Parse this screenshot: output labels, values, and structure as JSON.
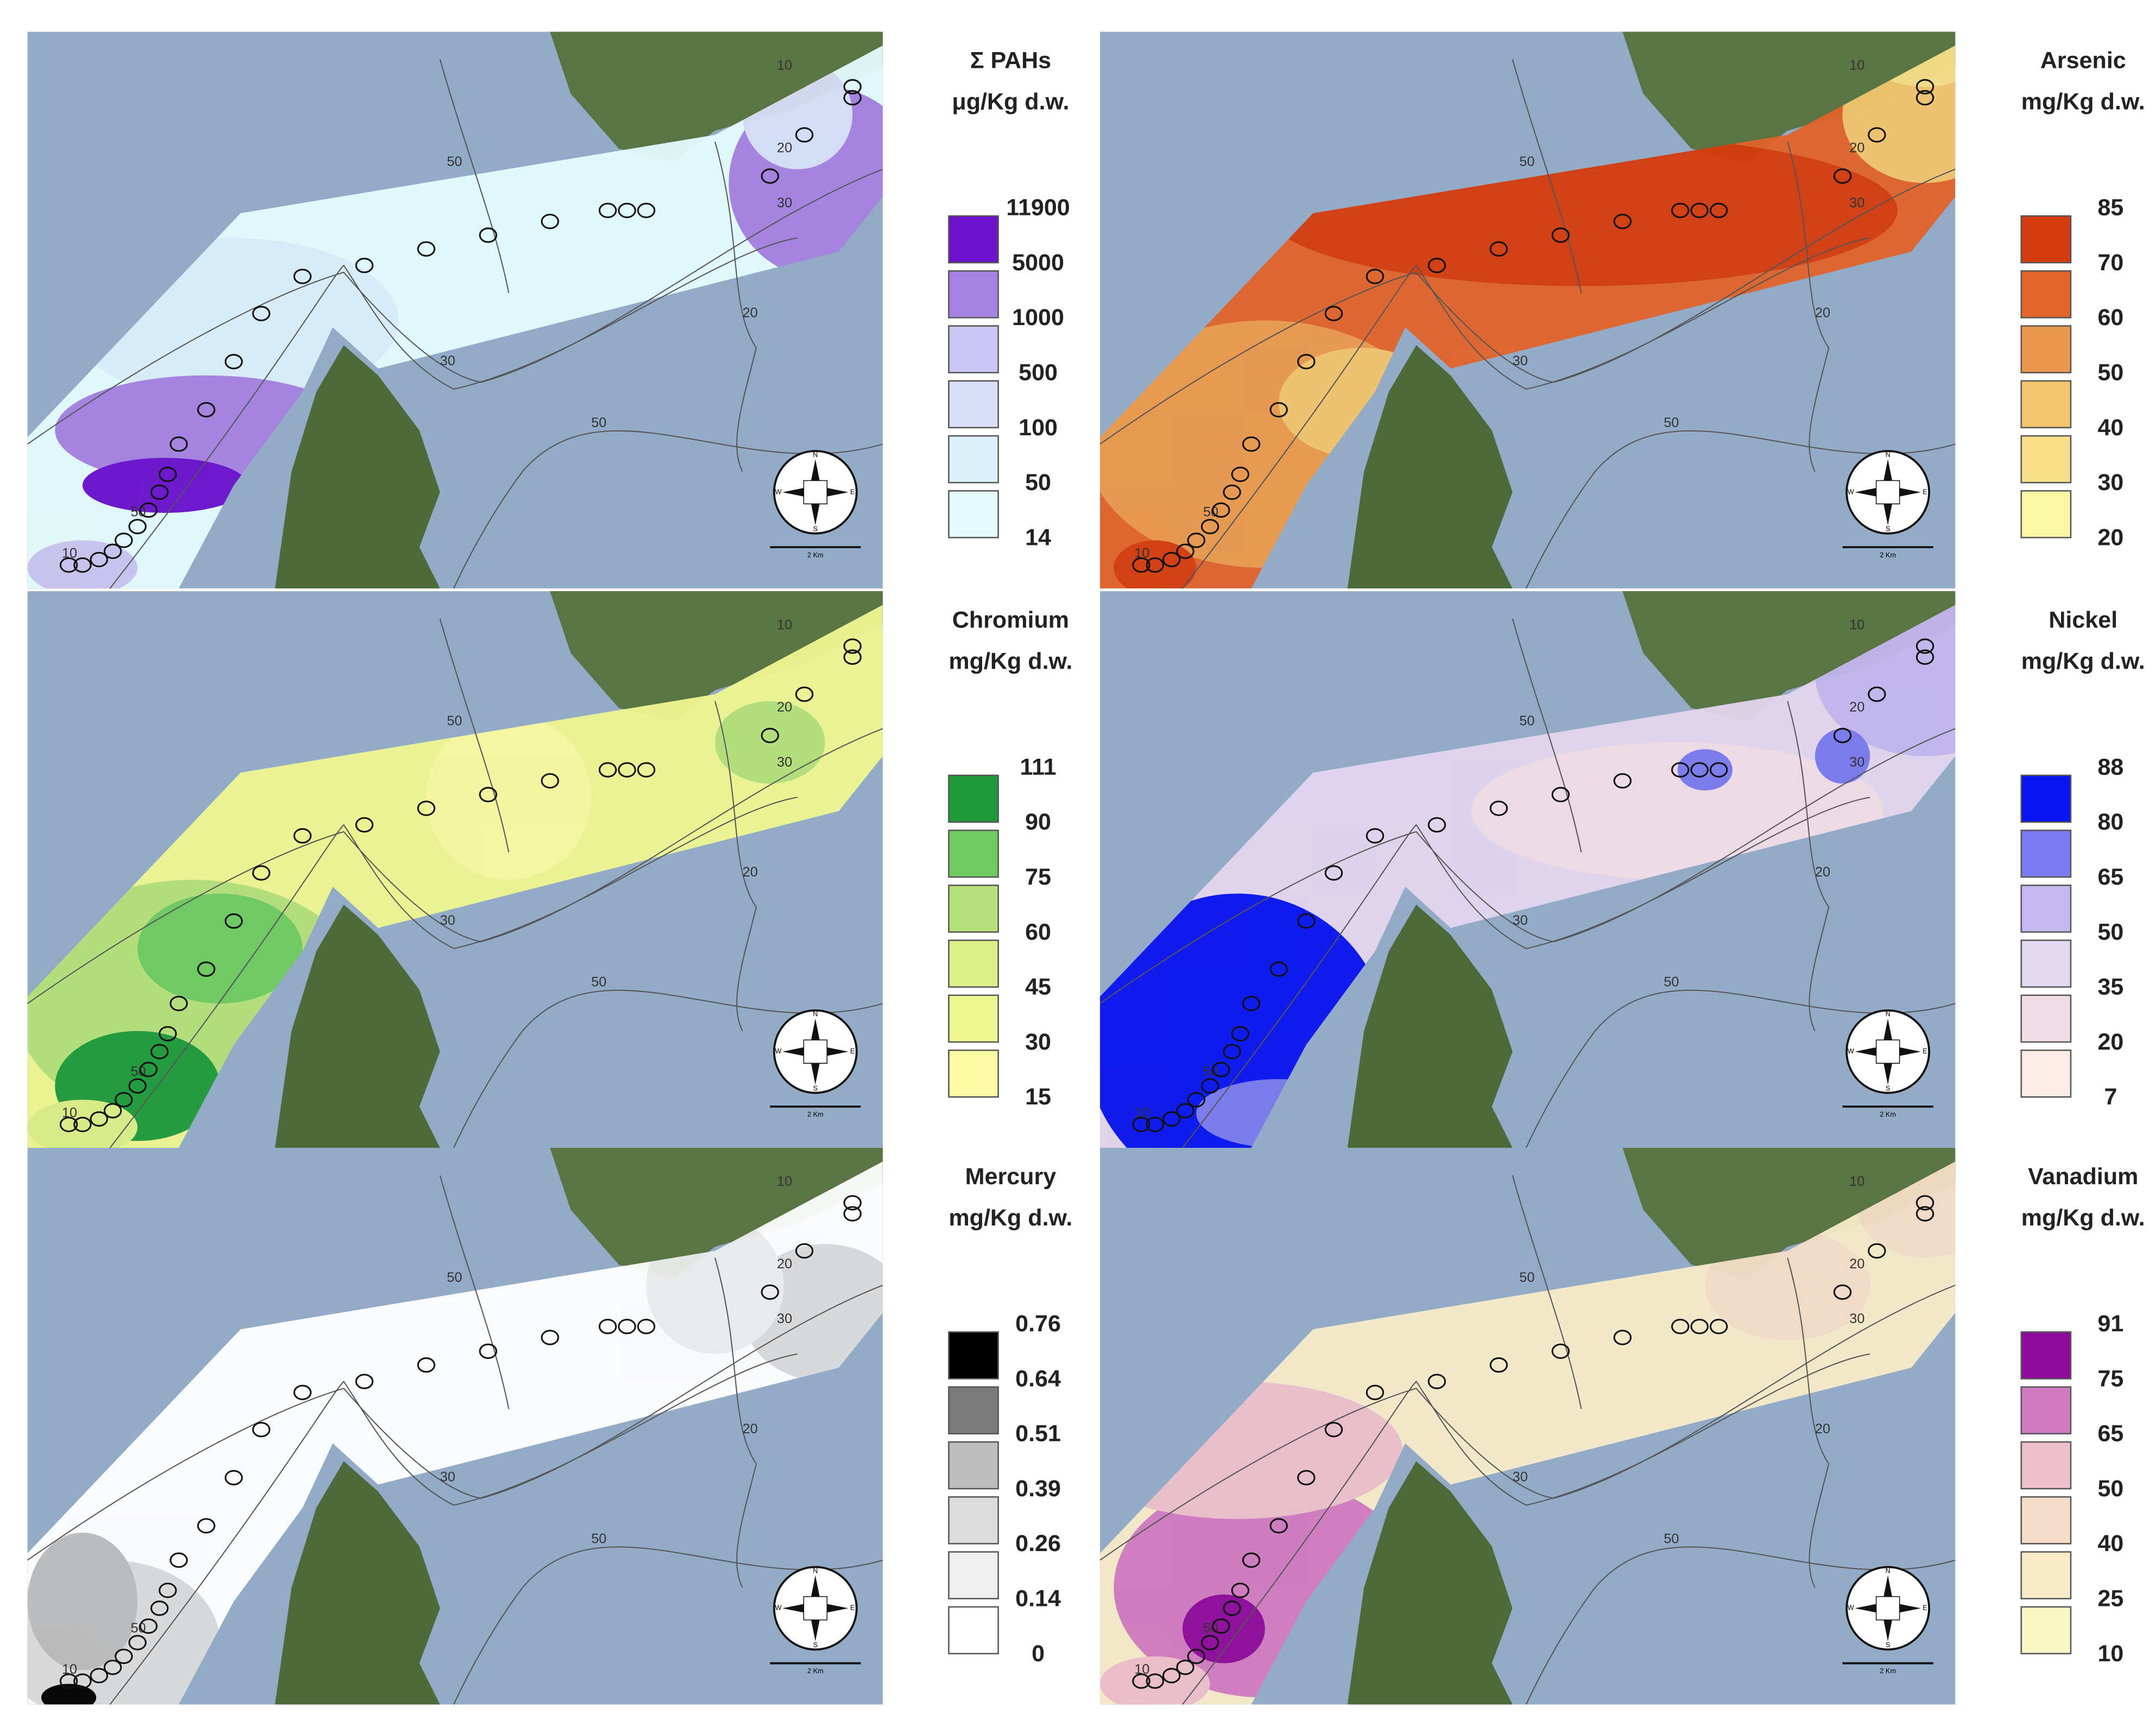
{
  "panels": [
    {
      "title": "Σ PAHs",
      "unit": "μg/Kg d.w.",
      "breaks": [
        11900,
        5000,
        1000,
        500,
        100,
        50,
        14
      ],
      "colors": [
        "#6a12cc",
        "#a682e2",
        "#cac6f2",
        "#d7e0f6",
        "#dcf0fa",
        "#e4fcfd"
      ]
    },
    {
      "title": "Arsenic",
      "unit": "mg/Kg d.w.",
      "breaks": [
        85,
        70,
        60,
        50,
        40,
        30,
        20
      ],
      "colors": [
        "#d43c0f",
        "#e1642b",
        "#ea994c",
        "#f2c56e",
        "#f7df88",
        "#fbf8a2"
      ]
    },
    {
      "title": "Chromium",
      "unit": "mg/Kg d.w.",
      "breaks": [
        111,
        90,
        75,
        60,
        45,
        30,
        15
      ],
      "colors": [
        "#1f9a3a",
        "#6fcb60",
        "#b6e07a",
        "#dcef88",
        "#eef792",
        "#fafaa2"
      ]
    },
    {
      "title": "Nickel",
      "unit": "mg/Kg d.w.",
      "breaks": [
        88,
        80,
        65,
        50,
        35,
        20,
        7
      ],
      "colors": [
        "#0a14f0",
        "#7c7af0",
        "#c3b8ef",
        "#e3d6ef",
        "#f1dde6",
        "#fbece6"
      ]
    },
    {
      "title": "Mercury",
      "unit": "mg/Kg d.w.",
      "breaks": [
        0.76,
        0.64,
        0.51,
        0.39,
        0.26,
        0.14,
        0
      ],
      "colors": [
        "#000000",
        "#7a7a7a",
        "#bdbdbd",
        "#dcdcdc",
        "#eeeeee",
        "#ffffff"
      ]
    },
    {
      "title": "Vanadium",
      "unit": "mg/Kg d.w.",
      "breaks": [
        91,
        75,
        65,
        50,
        40,
        25,
        10
      ],
      "colors": [
        "#8e0a9a",
        "#d27cc0",
        "#ecc0cb",
        "#f4dec9",
        "#f7ebca",
        "#fbf7c4"
      ]
    }
  ],
  "map": {
    "contour_labels": [
      "10",
      "20",
      "30",
      "50"
    ],
    "scale_label": "2 Km",
    "compass": [
      "N",
      "E",
      "S",
      "W"
    ]
  }
}
